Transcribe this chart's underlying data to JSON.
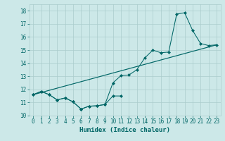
{
  "xlabel": "Humidex (Indice chaleur)",
  "bg_color": "#cce8e8",
  "grid_color": "#aacccc",
  "line_color": "#006666",
  "xlim": [
    -0.5,
    23.5
  ],
  "ylim": [
    10,
    18.5
  ],
  "yticks": [
    10,
    11,
    12,
    13,
    14,
    15,
    16,
    17,
    18
  ],
  "xticks": [
    0,
    1,
    2,
    3,
    4,
    5,
    6,
    7,
    8,
    9,
    10,
    11,
    12,
    13,
    14,
    15,
    16,
    17,
    18,
    19,
    20,
    21,
    22,
    23
  ],
  "series1_x": [
    0,
    1,
    2,
    3,
    4,
    5,
    6,
    7,
    8,
    9,
    10,
    11
  ],
  "series1_y": [
    11.6,
    11.85,
    11.6,
    11.2,
    11.35,
    11.05,
    10.5,
    10.72,
    10.75,
    10.85,
    11.5,
    11.5
  ],
  "series2_x": [
    0,
    1,
    2,
    3,
    4,
    5,
    6,
    7,
    8,
    9,
    10,
    11,
    12,
    13,
    14,
    15,
    16,
    17,
    18,
    19,
    20,
    21,
    22,
    23
  ],
  "series2_y": [
    11.6,
    11.85,
    11.6,
    11.2,
    11.35,
    11.05,
    10.5,
    10.72,
    10.75,
    10.85,
    12.5,
    13.05,
    13.1,
    13.5,
    14.4,
    15.0,
    14.8,
    14.85,
    17.75,
    17.85,
    16.5,
    15.5,
    15.35,
    15.4
  ],
  "series3_x": [
    0,
    23
  ],
  "series3_y": [
    11.6,
    15.4
  ],
  "marker_size": 2.5
}
